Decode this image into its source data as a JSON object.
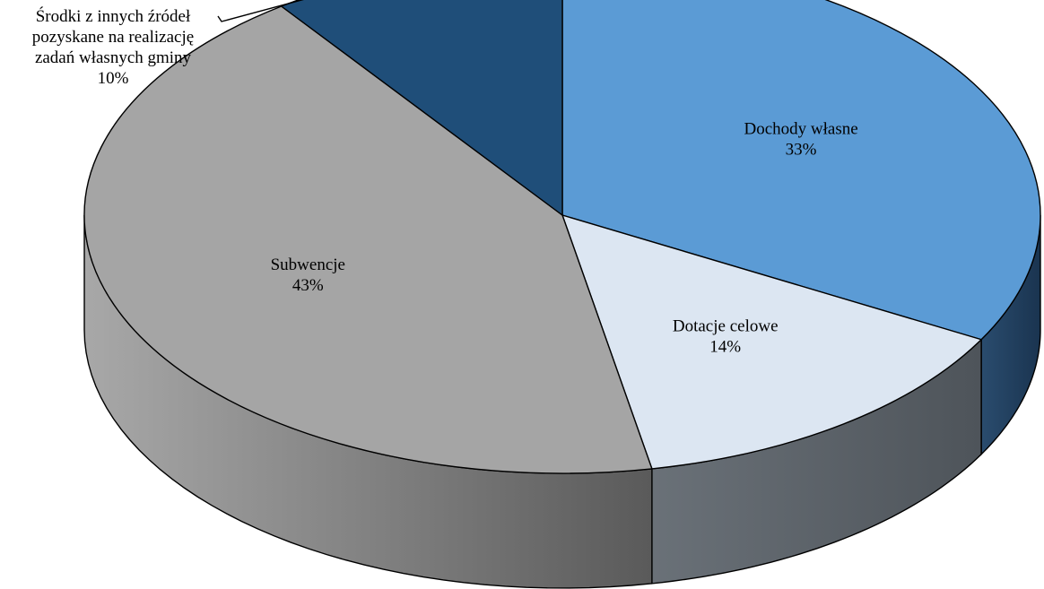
{
  "chart_data": {
    "type": "pie",
    "style": "3d",
    "categories": [
      "Dochody własne",
      "Dotacje celowe",
      "Subwencje",
      "Środki z innych źródeł pozyskane na realizację zadań własnych gminy"
    ],
    "values": [
      33,
      14,
      43,
      10
    ],
    "percent_labels": [
      "33%",
      "14%",
      "43%",
      "10%"
    ],
    "label_lines": [
      [
        "Dochody własne"
      ],
      [
        "Dotacje celowe"
      ],
      [
        "Subwencje"
      ],
      [
        "Środki z innych źródeł",
        "pozyskane na realizację",
        "zadań własnych gminy"
      ]
    ],
    "colors": [
      "#5b9bd5",
      "#dce6f2",
      "#a5a5a5",
      "#1f4e79"
    ],
    "side_colors": [
      "#1f3f5e",
      "#575d63",
      "#707070",
      "#152f4a"
    ],
    "legend": "none"
  }
}
